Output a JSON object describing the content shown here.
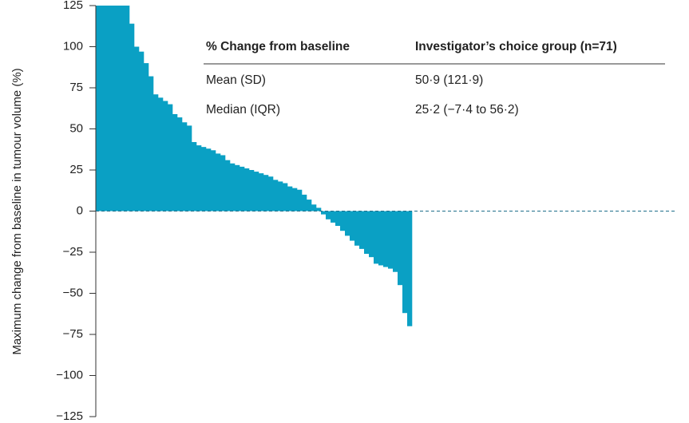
{
  "chart_data": {
    "type": "bar",
    "ylabel": "Maximum change from baseline in tumour volume (%)",
    "color": "#0aa0c4",
    "values": [
      125,
      125,
      125,
      125,
      125,
      125,
      125,
      114,
      100,
      97,
      90,
      82,
      71,
      69,
      67,
      65,
      59,
      57,
      54,
      52,
      42,
      40,
      39,
      38,
      37,
      35,
      34,
      31,
      29,
      28,
      27,
      26,
      25,
      24,
      23,
      22,
      21,
      19,
      18,
      17,
      15,
      14,
      13,
      10,
      7,
      4,
      2,
      -2,
      -5,
      -7,
      -9,
      -12,
      -15,
      -18,
      -21,
      -23,
      -26,
      -28,
      -32,
      -33,
      -34,
      -35,
      -37,
      -45,
      -62,
      -70
    ],
    "ylim": [
      -125,
      125
    ],
    "yticks": [
      {
        "value": -125,
        "label": "−125"
      },
      {
        "value": -100,
        "label": "−100"
      },
      {
        "value": -75,
        "label": "−75"
      },
      {
        "value": -50,
        "label": "−50"
      },
      {
        "value": -25,
        "label": "−25"
      },
      0,
      25,
      50,
      75,
      100,
      125
    ],
    "zero_line": true,
    "table": {
      "header": [
        "% Change from baseline",
        "Investigator’s choice group (n=71)"
      ],
      "rows": [
        [
          "Mean (SD)",
          "50·9 (121·9)"
        ],
        [
          "Median (IQR)",
          "25·2 (−7·4 to 56·2)"
        ]
      ]
    }
  }
}
